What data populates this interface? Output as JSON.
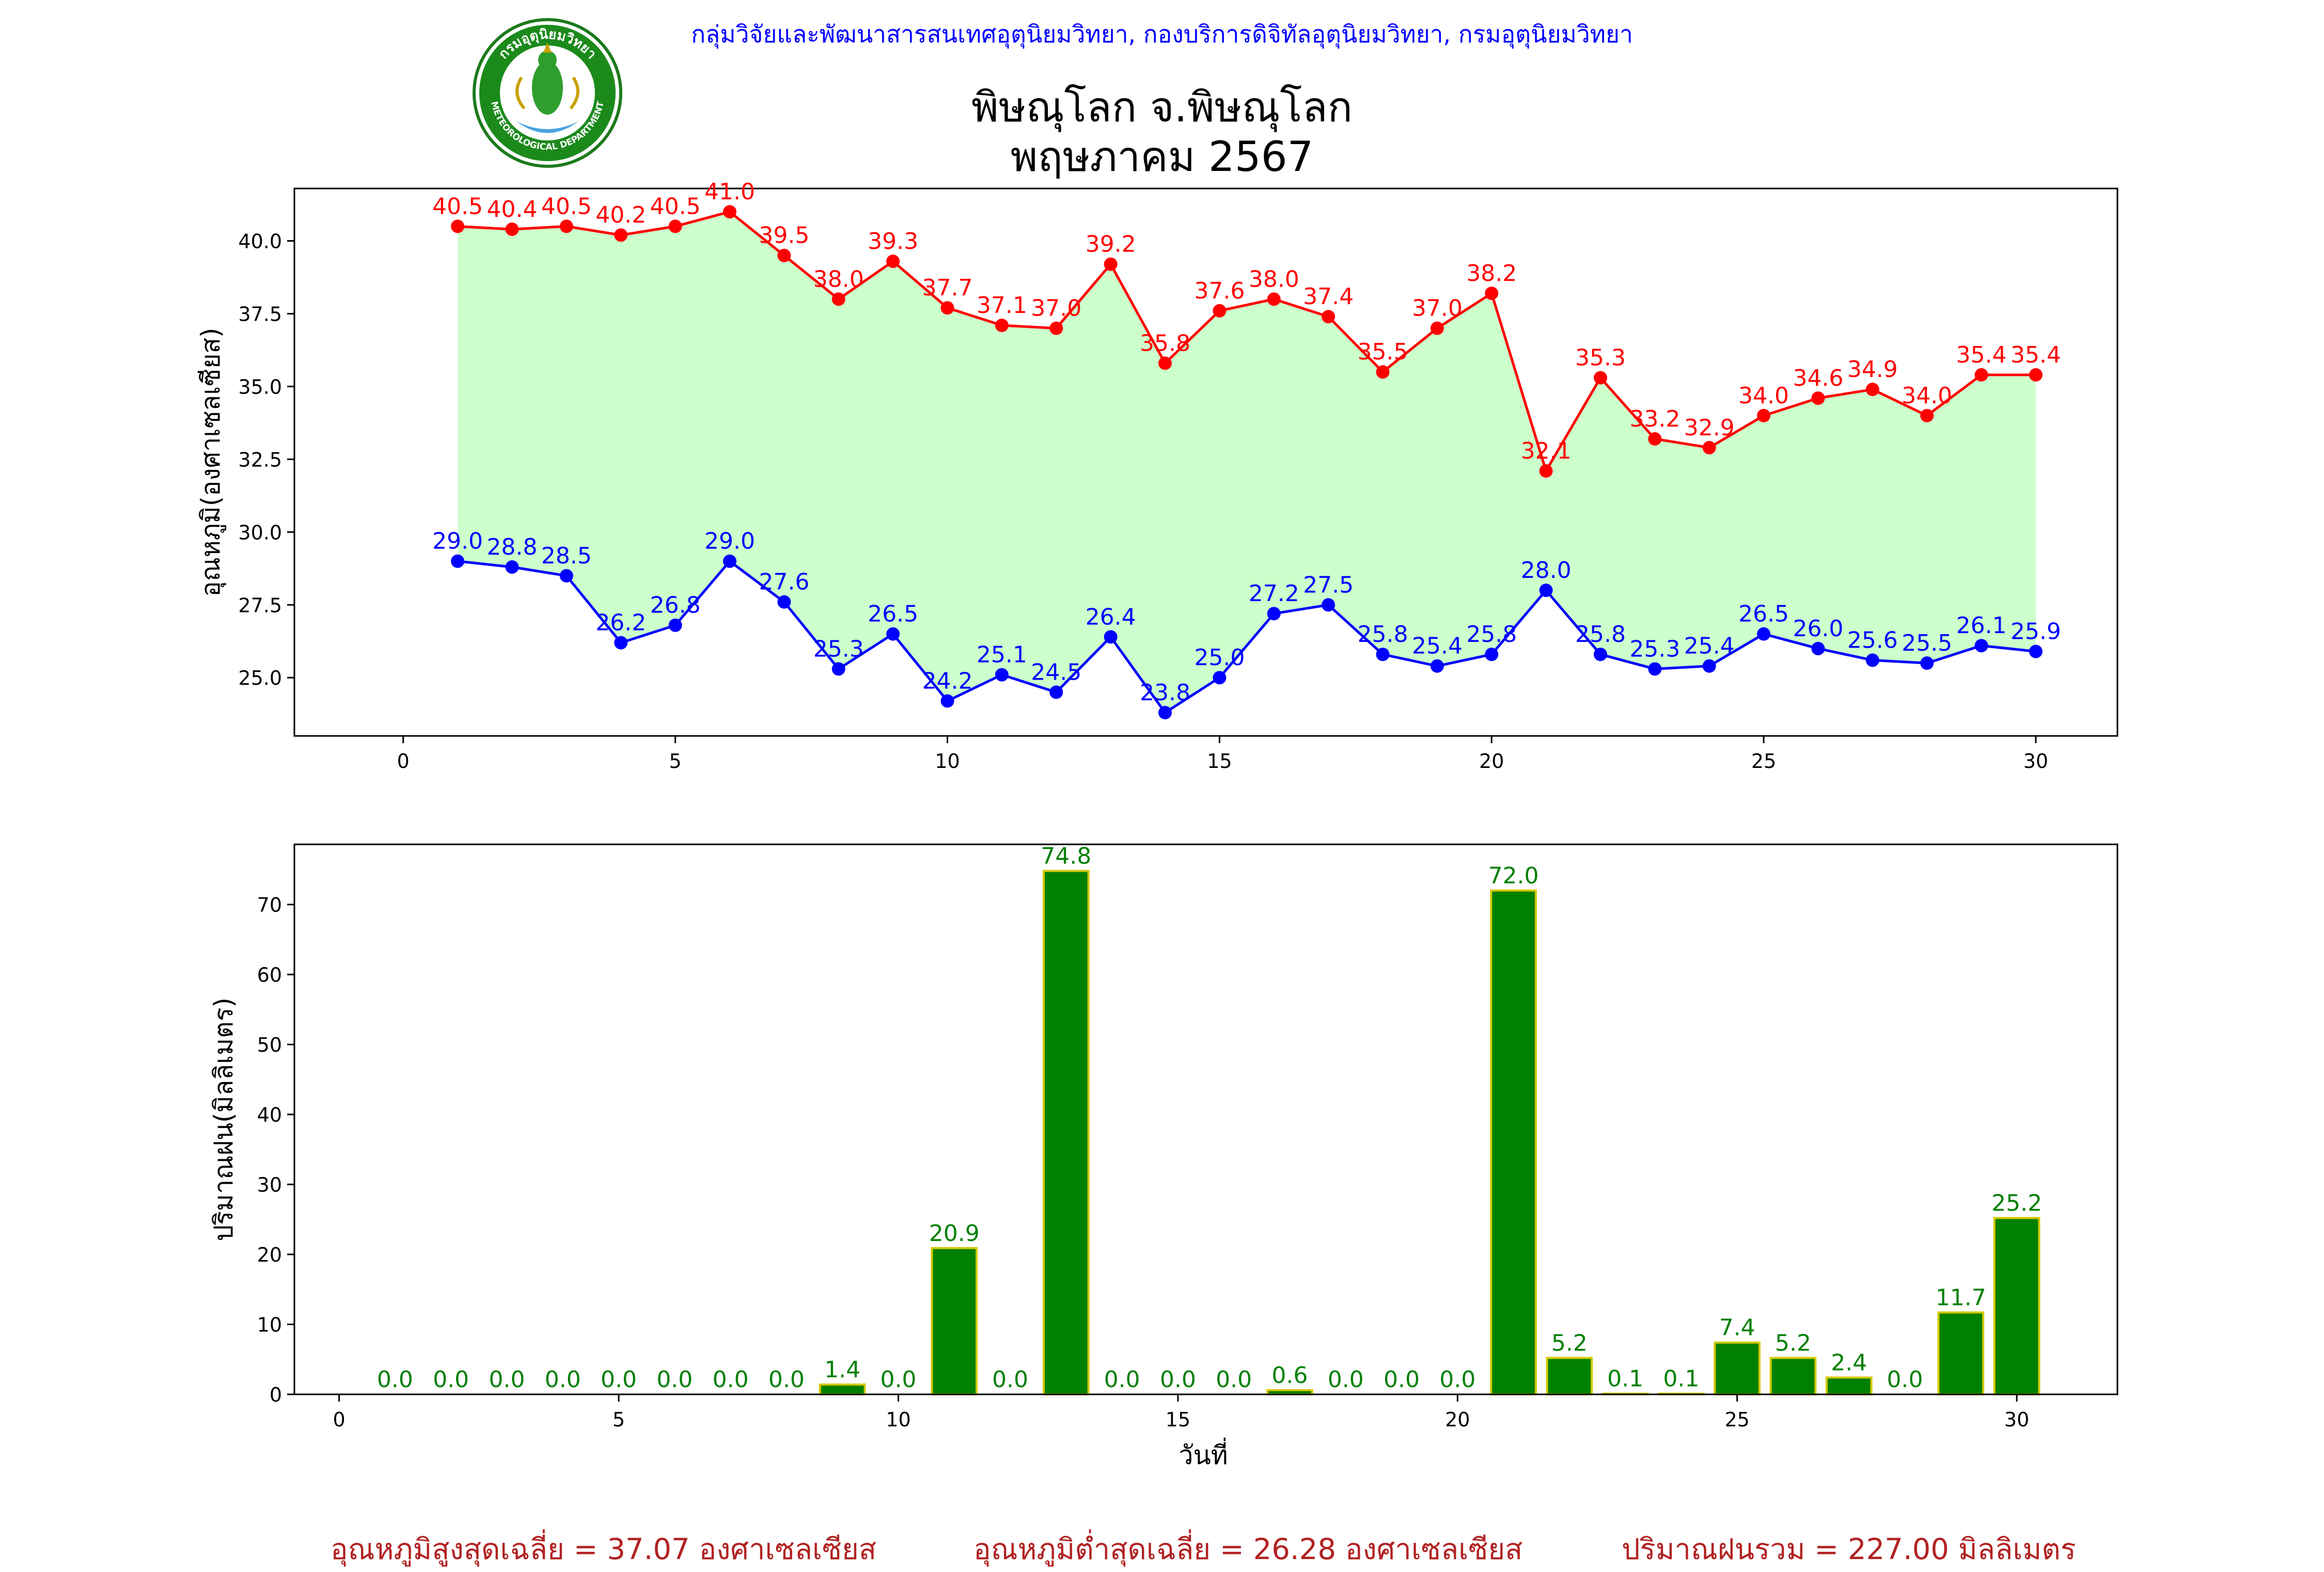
{
  "header": {
    "agency": "กลุ่มวิจัยและพัฒนาสารสนเทศอุตุนิยมวิทยา, กองบริการดิจิทัลอุตุนิยมวิทยา, กรมอุตุนิยมวิทยา",
    "station": "พิษณุโลก จ.พิษณุโลก",
    "period": "พฤษภาคม 2567",
    "logo_text_top": "กรมอุตุนิยมวิทยา",
    "logo_text_bottom": "METEOROLOGICAL DEPARTMENT"
  },
  "colors": {
    "max_temp": "#ff0000",
    "min_temp": "#0000ff",
    "temp_fill": "#ccffcc",
    "rain_bar": "#008000",
    "rain_edge": "#d4c800",
    "rain_label": "#008000",
    "summary": "#b22222"
  },
  "chart_data": [
    {
      "type": "line",
      "ylabel": "อุณหภูมิ(องศาเซลเซียส)",
      "xlim": [
        -2,
        31.5
      ],
      "ylim": [
        23.0,
        41.8
      ],
      "xticks": [
        0,
        5,
        10,
        15,
        20,
        25,
        30
      ],
      "yticks": [
        25.0,
        27.5,
        30.0,
        32.5,
        35.0,
        37.5,
        40.0
      ],
      "x": [
        1,
        2,
        3,
        4,
        5,
        6,
        7,
        8,
        9,
        10,
        11,
        12,
        13,
        14,
        15,
        16,
        17,
        18,
        19,
        20,
        21,
        22,
        23,
        24,
        25,
        26,
        27,
        28,
        29,
        30
      ],
      "series": [
        {
          "key": "max",
          "values": [
            40.5,
            40.4,
            40.5,
            40.2,
            40.5,
            41.0,
            39.5,
            38.0,
            39.3,
            37.7,
            37.1,
            37.0,
            39.2,
            35.8,
            37.6,
            38.0,
            37.4,
            35.5,
            37.0,
            38.2,
            32.1,
            35.3,
            33.2,
            32.9,
            34.0,
            34.6,
            34.9,
            34.0,
            35.4,
            35.4
          ]
        },
        {
          "key": "min",
          "values": [
            29.0,
            28.8,
            28.5,
            26.2,
            26.8,
            29.0,
            27.6,
            25.3,
            26.5,
            24.2,
            25.1,
            24.5,
            26.4,
            23.8,
            25.0,
            27.2,
            27.5,
            25.8,
            25.4,
            25.8,
            28.0,
            25.8,
            25.3,
            25.4,
            26.5,
            26.0,
            25.6,
            25.5,
            26.1,
            25.9
          ]
        }
      ]
    },
    {
      "type": "bar",
      "ylabel": "ปริมาณฝน(มิลลิเมตร)",
      "xlabel": "วันที่",
      "xlim": [
        -0.8,
        31.8
      ],
      "ylim": [
        0,
        78.6
      ],
      "xticks": [
        0,
        5,
        10,
        15,
        20,
        25,
        30
      ],
      "yticks": [
        0,
        10,
        20,
        30,
        40,
        50,
        60,
        70
      ],
      "x": [
        1,
        2,
        3,
        4,
        5,
        6,
        7,
        8,
        9,
        10,
        11,
        12,
        13,
        14,
        15,
        16,
        17,
        18,
        19,
        20,
        21,
        22,
        23,
        24,
        25,
        26,
        27,
        28,
        29,
        30
      ],
      "values": [
        0.0,
        0.0,
        0.0,
        0.0,
        0.0,
        0.0,
        0.0,
        0.0,
        1.4,
        0.0,
        20.9,
        0.0,
        74.8,
        0.0,
        0.0,
        0.0,
        0.6,
        0.0,
        0.0,
        0.0,
        72.0,
        5.2,
        0.1,
        0.1,
        7.4,
        5.2,
        2.4,
        0.0,
        11.7,
        25.2
      ]
    }
  ],
  "summary": {
    "avg_max": "อุณหภูมิสูงสุดเฉลี่ย = 37.07 องศาเซลเซียส",
    "avg_min": "อุณหภูมิต่ำสุดเฉลี่ย = 26.28 องศาเซลเซียส",
    "total_rain": "ปริมาณฝนรวม = 227.00 มิลลิเมตร"
  }
}
